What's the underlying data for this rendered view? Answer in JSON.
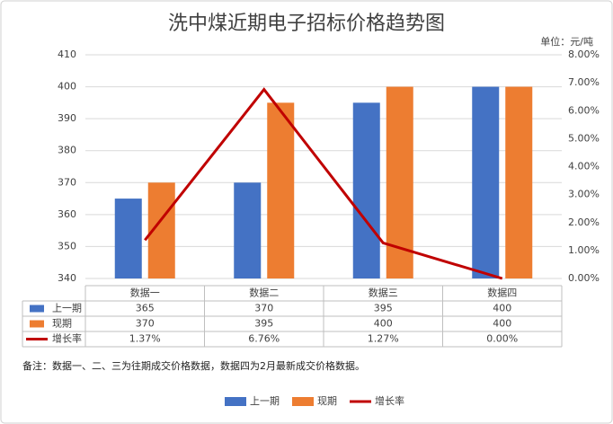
{
  "chart_data": {
    "type": "bar",
    "title": "洗中煤近期电子招标价格趋势图",
    "unit": "单位：元/吨",
    "categories": [
      "数据一",
      "数据二",
      "数据三",
      "数据四"
    ],
    "series": [
      {
        "name": "上一期",
        "color": "#4472c4",
        "values": [
          365,
          370,
          395,
          400
        ]
      },
      {
        "name": "现期",
        "color": "#ed7d31",
        "values": [
          370,
          395,
          400,
          400
        ]
      },
      {
        "name": "增长率",
        "color": "#c00000",
        "type": "line",
        "axis": "y2",
        "values": [
          1.37,
          6.76,
          1.27,
          0.0
        ],
        "value_labels": [
          "1.37%",
          "6.76%",
          "1.27%",
          "0.00%"
        ]
      }
    ],
    "ylim": [
      340,
      410
    ],
    "yticks": [
      340,
      350,
      360,
      370,
      380,
      390,
      400,
      410
    ],
    "y2lim": [
      0,
      8
    ],
    "y2ticks": [
      {
        "value": 0,
        "label": "0.00%"
      },
      {
        "value": 1,
        "label": "1.00%"
      },
      {
        "value": 2,
        "label": "2.00%"
      },
      {
        "value": 3,
        "label": "3.00%"
      },
      {
        "value": 4,
        "label": "4.00%"
      },
      {
        "value": 5,
        "label": "5.00%"
      },
      {
        "value": 6,
        "label": "6.00%"
      },
      {
        "value": 7,
        "label": "7.00%"
      },
      {
        "value": 8,
        "label": "8.00%"
      }
    ],
    "grid": true,
    "note": "备注：数据一、二、三为往期成交价格数据，数据四为2月最新成交价格数据。"
  }
}
